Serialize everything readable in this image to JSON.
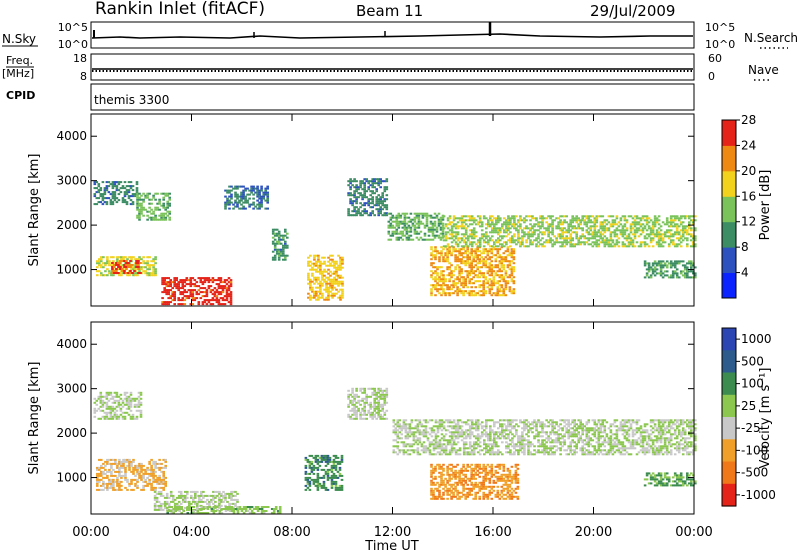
{
  "header": {
    "station": "Rankin Inlet (fitACF)",
    "beam": "Beam 11",
    "date": "29/Jul/2009"
  },
  "status_panels": {
    "nsky_label": "N.Sky",
    "nsearch_label": "N.Search",
    "freq_label_1": "Freq.",
    "freq_label_2": "[MHz]",
    "nave_label": "Nave",
    "cpid_label": "CPID",
    "cpid_value": "themis 3300",
    "noise_ticks": [
      "10^5",
      "10^0"
    ],
    "freq_ticks": [
      "18",
      "8"
    ],
    "nave_ticks": [
      "60",
      "0"
    ]
  },
  "chart_data": [
    {
      "type": "heatmap",
      "title": "",
      "xlabel": "",
      "ylabel": "Slant Range [km]",
      "x_range": [
        "00:00",
        "24:00"
      ],
      "ylim": [
        180,
        4500
      ],
      "y_ticks": [
        "1000",
        "2000",
        "3000",
        "4000"
      ],
      "colorbar": {
        "label": "Power [dB]",
        "ticks": [
          "4",
          "8",
          "12",
          "16",
          "20",
          "24",
          "28"
        ],
        "colors": [
          "#0a23ff",
          "#2d52bf",
          "#3c8c64",
          "#7ac35a",
          "#f2d21d",
          "#ee8a14",
          "#e62318"
        ],
        "range": [
          0,
          30
        ]
      },
      "regions": [
        {
          "t_start": 0.1,
          "t_end": 1.8,
          "r_start": 2450,
          "r_end": 2950,
          "value": 10
        },
        {
          "t_start": 0.2,
          "t_end": 2.6,
          "r_start": 850,
          "r_end": 1300,
          "value": 18
        },
        {
          "t_start": 0.8,
          "t_end": 2.0,
          "r_start": 900,
          "r_end": 1200,
          "value": 26
        },
        {
          "t_start": 1.8,
          "t_end": 3.1,
          "r_start": 2100,
          "r_end": 2700,
          "value": 14
        },
        {
          "t_start": 2.8,
          "t_end": 5.6,
          "r_start": 200,
          "r_end": 800,
          "value": 28
        },
        {
          "t_start": 5.3,
          "t_end": 7.0,
          "r_start": 2350,
          "r_end": 2850,
          "value": 9
        },
        {
          "t_start": 7.2,
          "t_end": 7.8,
          "r_start": 1200,
          "r_end": 1900,
          "value": 11
        },
        {
          "t_start": 8.6,
          "t_end": 10.0,
          "r_start": 300,
          "r_end": 1300,
          "value": 20
        },
        {
          "t_start": 10.2,
          "t_end": 11.8,
          "r_start": 2200,
          "r_end": 3050,
          "value": 10
        },
        {
          "t_start": 11.8,
          "t_end": 14.0,
          "r_start": 1650,
          "r_end": 2250,
          "value": 14
        },
        {
          "t_start": 13.5,
          "t_end": 16.8,
          "r_start": 400,
          "r_end": 1500,
          "value": 22
        },
        {
          "t_start": 14.0,
          "t_end": 24.0,
          "r_start": 1500,
          "r_end": 2200,
          "value": 16
        },
        {
          "t_start": 22.0,
          "t_end": 24.0,
          "r_start": 800,
          "r_end": 1200,
          "value": 12
        }
      ]
    },
    {
      "type": "heatmap",
      "title": "",
      "xlabel": "Time UT",
      "ylabel": "Slant Range [km]",
      "x_range": [
        "00:00",
        "24:00"
      ],
      "x_ticks": [
        "00:00",
        "04:00",
        "08:00",
        "12:00",
        "16:00",
        "20:00",
        "00:00"
      ],
      "ylim": [
        180,
        4500
      ],
      "y_ticks": [
        "1000",
        "2000",
        "3000",
        "4000"
      ],
      "colorbar": {
        "label": "Velocity [m s⁻¹]",
        "ticks": [
          "1000",
          "500",
          "100",
          "25",
          "-25",
          "-100",
          "-500",
          "-1000"
        ],
        "colors": [
          "#2b45b3",
          "#2d5c8c",
          "#3c8c50",
          "#8cc850",
          "#c8c8c8",
          "#f0a028",
          "#f07818",
          "#e62318"
        ],
        "range": [
          -1000,
          1000
        ]
      },
      "regions": [
        {
          "t_start": 0.1,
          "t_end": 2.0,
          "r_start": 2300,
          "r_end": 2900,
          "value": 0
        },
        {
          "t_start": 0.2,
          "t_end": 3.0,
          "r_start": 700,
          "r_end": 1400,
          "value": -300
        },
        {
          "t_start": 2.5,
          "t_end": 5.8,
          "r_start": 250,
          "r_end": 700,
          "value": 0
        },
        {
          "t_start": 3.0,
          "t_end": 7.5,
          "r_start": 180,
          "r_end": 350,
          "value": 120
        },
        {
          "t_start": 8.5,
          "t_end": 10.0,
          "r_start": 700,
          "r_end": 1500,
          "value": 400
        },
        {
          "t_start": 10.2,
          "t_end": 11.8,
          "r_start": 2300,
          "r_end": 3000,
          "value": 0
        },
        {
          "t_start": 12.0,
          "t_end": 24.0,
          "r_start": 1500,
          "r_end": 2300,
          "value": 0
        },
        {
          "t_start": 13.5,
          "t_end": 17.0,
          "r_start": 500,
          "r_end": 1300,
          "value": -450
        },
        {
          "t_start": 22.0,
          "t_end": 24.0,
          "r_start": 800,
          "r_end": 1100,
          "value": 300
        }
      ]
    }
  ]
}
